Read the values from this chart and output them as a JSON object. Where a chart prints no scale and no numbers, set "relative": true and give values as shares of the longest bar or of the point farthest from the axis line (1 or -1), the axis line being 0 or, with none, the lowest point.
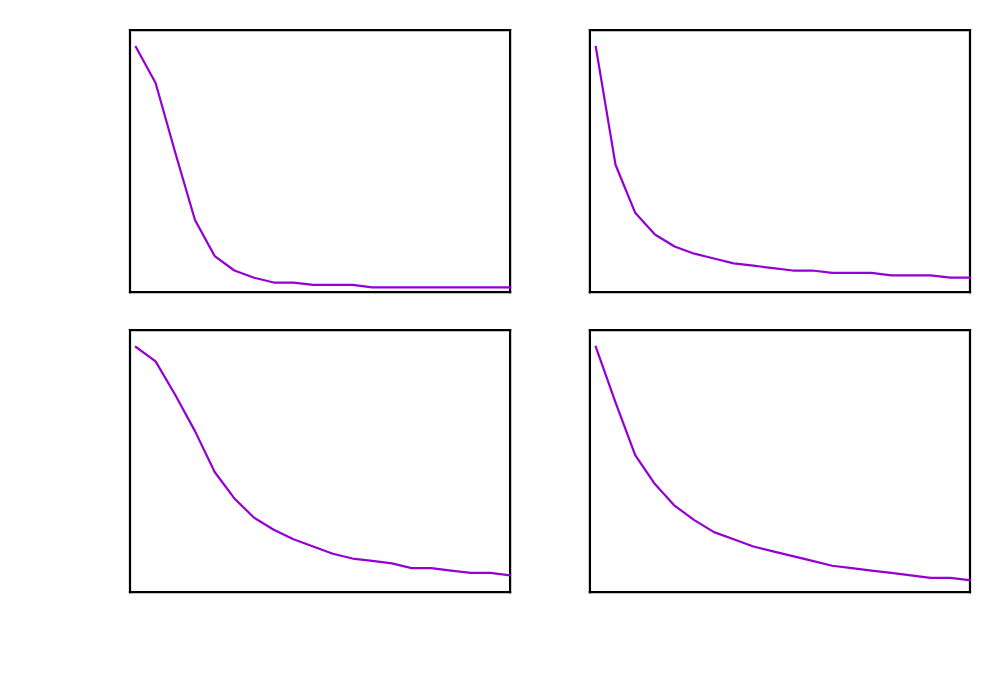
{
  "chart_data": [
    {
      "type": "line",
      "relative": true,
      "categories": [
        null,
        null,
        null,
        null,
        null,
        null,
        null,
        null,
        null,
        null,
        null,
        null,
        null,
        null,
        null,
        null,
        null,
        null,
        null,
        null
      ],
      "series": [
        {
          "color": "#9400d3",
          "values": [
            1,
            0.85,
            0.56,
            0.28,
            0.13,
            0.07,
            0.04,
            0.02,
            0.02,
            0.01,
            0.01,
            0.01,
            0,
            0,
            0,
            0,
            0,
            0,
            0,
            0
          ]
        }
      ]
    },
    {
      "type": "line",
      "relative": true,
      "categories": [
        null,
        null,
        null,
        null,
        null,
        null,
        null,
        null,
        null,
        null,
        null,
        null,
        null,
        null,
        null,
        null,
        null,
        null,
        null,
        null
      ],
      "series": [
        {
          "color": "#9400d3",
          "values": [
            1,
            0.51,
            0.31,
            0.22,
            0.17,
            0.14,
            0.12,
            0.1,
            0.09,
            0.08,
            0.07,
            0.07,
            0.06,
            0.06,
            0.06,
            0.05,
            0.05,
            0.05,
            0.04,
            0.04
          ]
        }
      ]
    },
    {
      "type": "line",
      "relative": true,
      "categories": [
        null,
        null,
        null,
        null,
        null,
        null,
        null,
        null,
        null,
        null,
        null,
        null,
        null,
        null,
        null,
        null,
        null,
        null,
        null,
        null
      ],
      "series": [
        {
          "color": "#9400d3",
          "values": [
            1,
            0.94,
            0.8,
            0.65,
            0.48,
            0.37,
            0.29,
            0.24,
            0.2,
            0.17,
            0.14,
            0.12,
            0.11,
            0.1,
            0.08,
            0.08,
            0.07,
            0.06,
            0.06,
            0.05
          ]
        }
      ]
    },
    {
      "type": "line",
      "relative": true,
      "categories": [
        null,
        null,
        null,
        null,
        null,
        null,
        null,
        null,
        null,
        null,
        null,
        null,
        null,
        null,
        null,
        null,
        null,
        null,
        null,
        null
      ],
      "series": [
        {
          "color": "#9400d3",
          "values": [
            1,
            0.77,
            0.55,
            0.43,
            0.34,
            0.28,
            0.23,
            0.2,
            0.17,
            0.15,
            0.13,
            0.11,
            0.09,
            0.08,
            0.07,
            0.06,
            0.05,
            0.04,
            0.04,
            0.03
          ]
        }
      ]
    }
  ]
}
